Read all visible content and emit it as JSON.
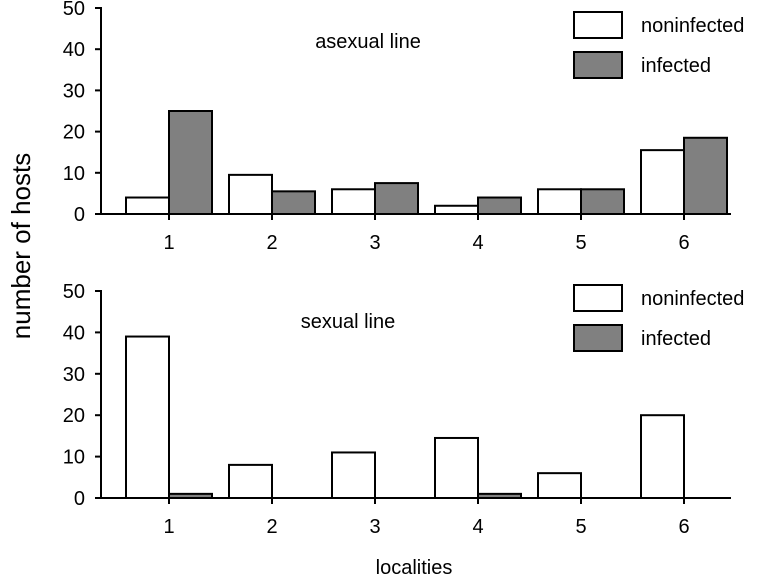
{
  "figure": {
    "ylabel": "number of hosts",
    "xlabel": "localities"
  },
  "colors": {
    "noninfected": "#ffffff",
    "infected": "#808080",
    "stroke": "#000000"
  },
  "chart_data": [
    {
      "type": "bar",
      "annotation": "asexual line",
      "categories": [
        "1",
        "2",
        "3",
        "4",
        "5",
        "6"
      ],
      "series": [
        {
          "name": "noninfected",
          "values": [
            4,
            9.5,
            6,
            2,
            6,
            15.5
          ]
        },
        {
          "name": "infected",
          "values": [
            25,
            5.5,
            7.5,
            4,
            6,
            18.5
          ]
        }
      ],
      "ylim": [
        0,
        50
      ],
      "yticks": [
        "0",
        "10",
        "20",
        "30",
        "40",
        "50"
      ],
      "legend_position": "top-right"
    },
    {
      "type": "bar",
      "annotation": "sexual line",
      "categories": [
        "1",
        "2",
        "3",
        "4",
        "5",
        "6"
      ],
      "series": [
        {
          "name": "noninfected",
          "values": [
            39,
            8,
            11,
            14.5,
            6,
            20
          ]
        },
        {
          "name": "infected",
          "values": [
            1,
            0,
            0,
            1,
            0,
            0
          ]
        }
      ],
      "ylim": [
        0,
        50
      ],
      "yticks": [
        "0",
        "10",
        "20",
        "30",
        "40",
        "50"
      ],
      "legend_position": "top-right"
    }
  ]
}
